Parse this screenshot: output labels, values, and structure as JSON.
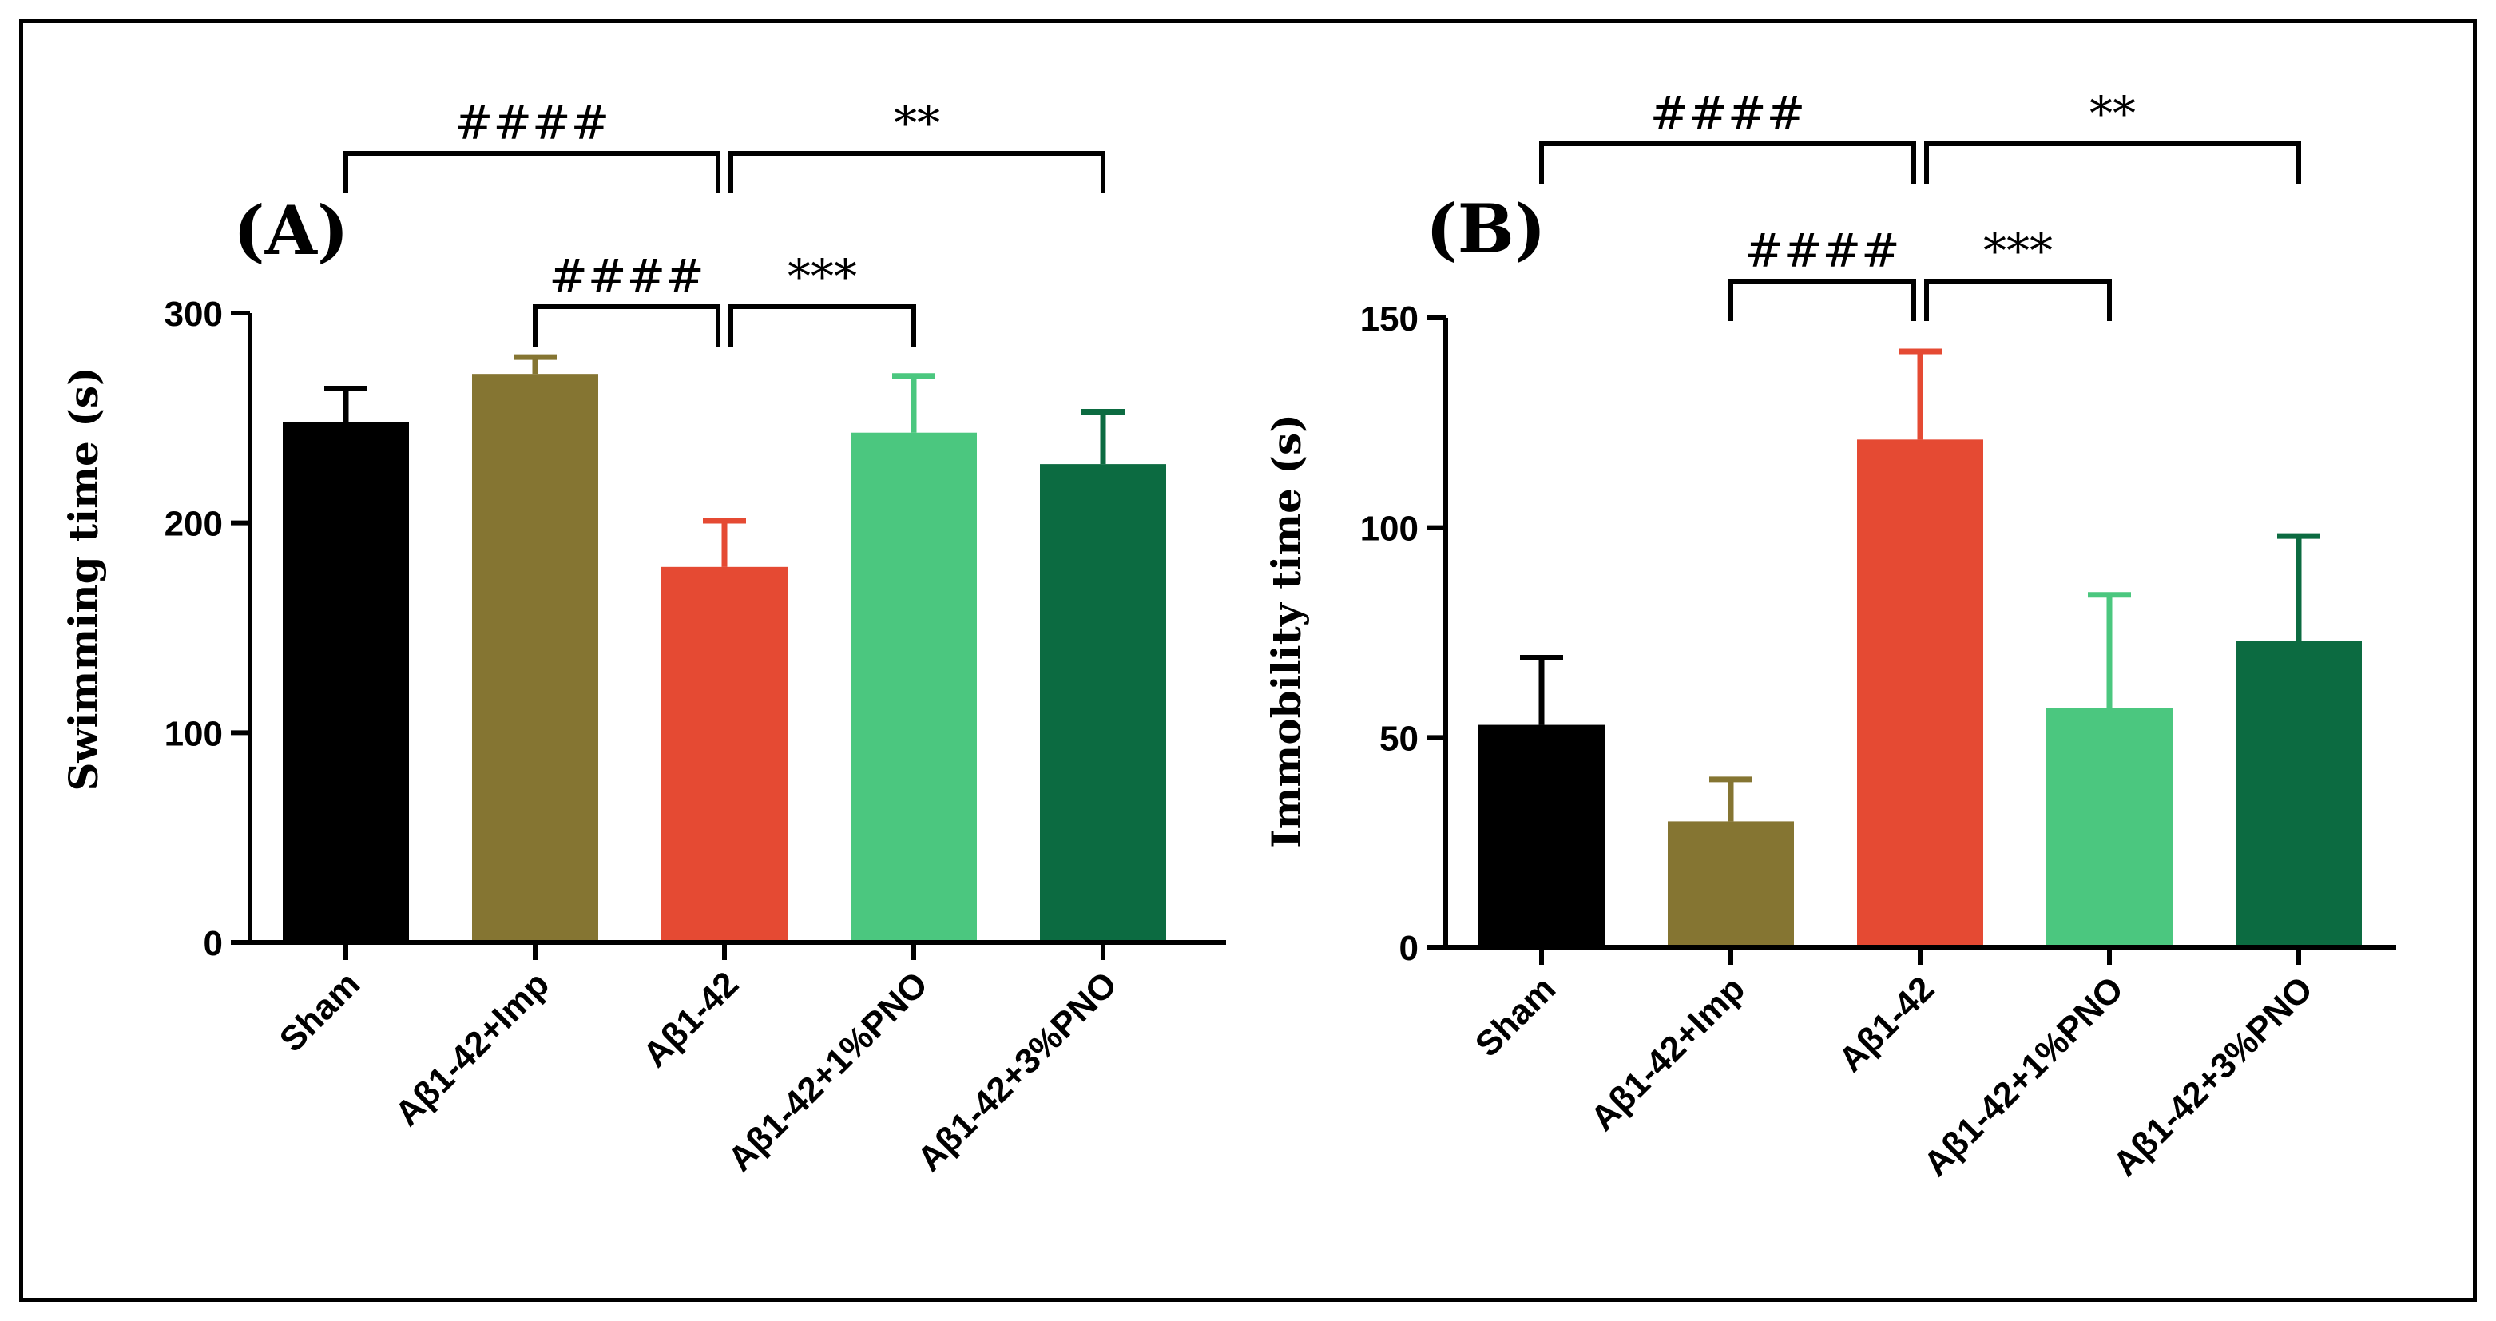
{
  "chart_data": [
    {
      "type": "bar",
      "panel_label": "(A)",
      "ylabel": "Swimming time (s)",
      "xlabel": "",
      "categories": [
        "Sham",
        "Aβ1-42+Imp",
        "Aβ1-42",
        "Aβ1-42+1%PNO",
        "Aβ1-42+3%PNO"
      ],
      "values": [
        248,
        271,
        179,
        243,
        228
      ],
      "errors": [
        16,
        8,
        22,
        27,
        25
      ],
      "colors": [
        "#000000",
        "#857532",
        "#e54a33",
        "#4bc77f",
        "#0c6b41"
      ],
      "ylim": [
        0,
        300
      ],
      "yticks": [
        "0",
        "100",
        "200",
        "300"
      ],
      "grid": false,
      "significance": [
        {
          "from": 0,
          "to": 2,
          "label": "####",
          "level": 1
        },
        {
          "from": 2,
          "to": 4,
          "label": "**",
          "level": 1
        },
        {
          "from": 1,
          "to": 2,
          "label": "####",
          "level": 0
        },
        {
          "from": 2,
          "to": 3,
          "label": "***",
          "level": 0
        }
      ]
    },
    {
      "type": "bar",
      "panel_label": "(B)",
      "ylabel": "Immobility time (s)",
      "xlabel": "",
      "categories": [
        "Sham",
        "Aβ1-42+Imp",
        "Aβ1-42",
        "Aβ1-42+1%PNO",
        "Aβ1-42+3%PNO"
      ],
      "values": [
        53,
        30,
        121,
        57,
        73
      ],
      "errors": [
        16,
        10,
        21,
        27,
        25
      ],
      "colors": [
        "#000000",
        "#857532",
        "#e54a33",
        "#4bc77f",
        "#0c6b41"
      ],
      "ylim": [
        0,
        150
      ],
      "yticks": [
        "0",
        "50",
        "100",
        "150"
      ],
      "grid": false,
      "significance": [
        {
          "from": 0,
          "to": 2,
          "label": "####",
          "level": 1
        },
        {
          "from": 2,
          "to": 4,
          "label": "**",
          "level": 1
        },
        {
          "from": 1,
          "to": 2,
          "label": "####",
          "level": 0
        },
        {
          "from": 2,
          "to": 3,
          "label": "***",
          "level": 0
        }
      ]
    }
  ]
}
